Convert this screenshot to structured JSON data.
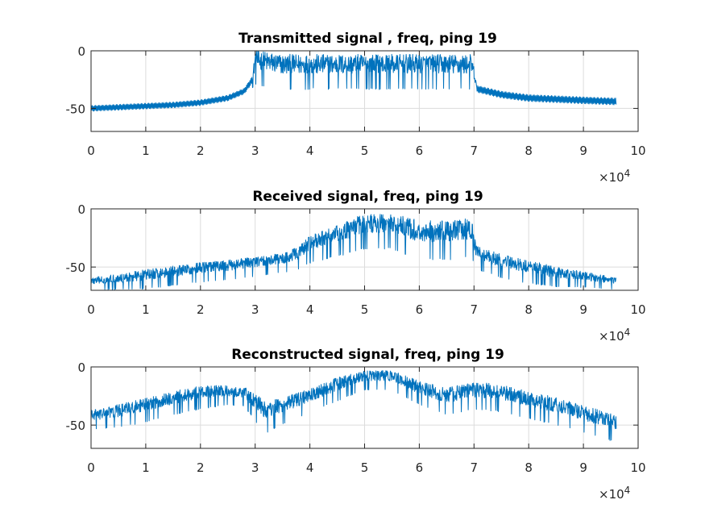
{
  "chart_data": [
    {
      "type": "line",
      "title": "Transmitted signal , freq, ping 19",
      "xlim": [
        0,
        100000
      ],
      "ylim": [
        -70,
        0
      ],
      "xticks": [
        0,
        10000,
        20000,
        30000,
        40000,
        50000,
        60000,
        70000,
        80000,
        90000,
        100000
      ],
      "xtick_labels": [
        "0",
        "1",
        "2",
        "3",
        "4",
        "5",
        "6",
        "7",
        "8",
        "9",
        "10"
      ],
      "yticks": [
        -50,
        0
      ],
      "ytick_labels": [
        "-50",
        "0"
      ],
      "x_exponent_label": "×10",
      "x_exponent_power": "4",
      "grid": true,
      "color": "#0072bd",
      "x": [
        0,
        5000,
        10000,
        15000,
        20000,
        25000,
        28000,
        29500,
        30000,
        35000,
        40000,
        45000,
        50000,
        55000,
        60000,
        65000,
        69500,
        70000,
        70500,
        75000,
        80000,
        85000,
        90000,
        96000
      ],
      "y": [
        -50,
        -49,
        -48,
        -47,
        -45,
        -41,
        -35,
        -25,
        -8,
        -12,
        -12,
        -12,
        -12,
        -12,
        -12,
        -12,
        -12,
        -20,
        -33,
        -38,
        -41,
        -42,
        -43,
        -44
      ],
      "noise": [
        2.5,
        2.5,
        2.5,
        2.5,
        2.5,
        2.5,
        2.5,
        3,
        9,
        9,
        9,
        9,
        9,
        9,
        9,
        9,
        9,
        6,
        3,
        3,
        3,
        3,
        3,
        3
      ]
    },
    {
      "type": "line",
      "title": "Received signal, freq, ping 19",
      "xlim": [
        0,
        100000
      ],
      "ylim": [
        -70,
        0
      ],
      "xticks": [
        0,
        10000,
        20000,
        30000,
        40000,
        50000,
        60000,
        70000,
        80000,
        90000,
        100000
      ],
      "xtick_labels": [
        "0",
        "1",
        "2",
        "3",
        "4",
        "5",
        "6",
        "7",
        "8",
        "9",
        "10"
      ],
      "yticks": [
        -50,
        0
      ],
      "ytick_labels": [
        "-50",
        "0"
      ],
      "x_exponent_label": "×10",
      "x_exponent_power": "4",
      "grid": true,
      "color": "#0072bd",
      "x": [
        0,
        5000,
        10000,
        15000,
        20000,
        25000,
        30000,
        35000,
        38000,
        40000,
        45000,
        50000,
        55000,
        60000,
        65000,
        69500,
        70500,
        75000,
        80000,
        85000,
        90000,
        96000
      ],
      "y": [
        -62,
        -60,
        -57,
        -54,
        -51,
        -49,
        -46,
        -43,
        -38,
        -30,
        -22,
        -13,
        -13,
        -20,
        -20,
        -18,
        -38,
        -45,
        -50,
        -55,
        -58,
        -62
      ],
      "noise": [
        3,
        4,
        5,
        5,
        5,
        5,
        5,
        5,
        6,
        7,
        8,
        9,
        9,
        10,
        10,
        10,
        6,
        6,
        6,
        5,
        4,
        3
      ]
    },
    {
      "type": "line",
      "title": "Reconstructed signal, freq, ping 19",
      "xlim": [
        0,
        100000
      ],
      "ylim": [
        -70,
        0
      ],
      "xticks": [
        0,
        10000,
        20000,
        30000,
        40000,
        50000,
        60000,
        70000,
        80000,
        90000,
        100000
      ],
      "xtick_labels": [
        "0",
        "1",
        "2",
        "3",
        "4",
        "5",
        "6",
        "7",
        "8",
        "9",
        "10"
      ],
      "yticks": [
        -50,
        0
      ],
      "ytick_labels": [
        "-50",
        "0"
      ],
      "x_exponent_label": "×10",
      "x_exponent_power": "4",
      "grid": true,
      "color": "#0072bd",
      "x": [
        0,
        5000,
        10000,
        15000,
        20000,
        25000,
        28000,
        30000,
        32000,
        35000,
        40000,
        45000,
        50000,
        55000,
        60000,
        65000,
        70000,
        75000,
        80000,
        85000,
        90000,
        96000
      ],
      "y": [
        -42,
        -38,
        -33,
        -27,
        -22,
        -21,
        -22,
        -30,
        -38,
        -33,
        -25,
        -15,
        -8,
        -8,
        -18,
        -25,
        -20,
        -22,
        -28,
        -33,
        -40,
        -48
      ],
      "noise": [
        5,
        6,
        6,
        6,
        6,
        5,
        5,
        7,
        8,
        7,
        6,
        6,
        5,
        5,
        6,
        7,
        7,
        7,
        7,
        7,
        7,
        7
      ]
    }
  ]
}
